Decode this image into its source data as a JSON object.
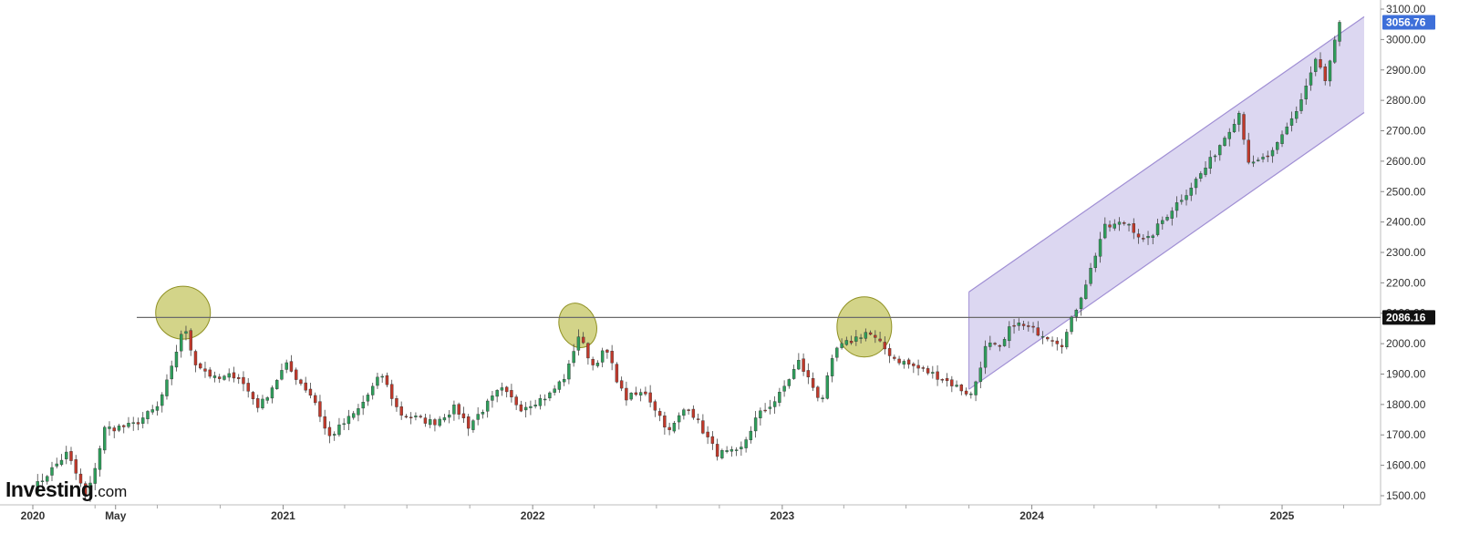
{
  "chart_data": {
    "type": "candlestick",
    "title": "",
    "xlabel": "",
    "ylabel": "",
    "x_range": [
      "2020-01-01",
      "2025-05-01"
    ],
    "ylim": [
      1470,
      3130
    ],
    "y_ticks": [
      1500,
      1600,
      1700,
      1800,
      1900,
      2000,
      2100,
      2200,
      2300,
      2400,
      2500,
      2600,
      2700,
      2800,
      2900,
      3000,
      3100
    ],
    "y_tick_labels": [
      "1500.00",
      "1600.00",
      "1700.00",
      "1800.00",
      "1900.00",
      "2000.00",
      "2100.00",
      "2200.00",
      "2300.00",
      "2400.00",
      "2500.00",
      "2600.00",
      "2700.00",
      "2800.00",
      "2900.00",
      "3000.00",
      "3100.00"
    ],
    "x_ticks": [
      {
        "date": "2020-01-01",
        "label": "2020"
      },
      {
        "date": "2020-05-01",
        "label": "May"
      },
      {
        "date": "2021-01-01",
        "label": "2021"
      },
      {
        "date": "2022-01-01",
        "label": "2022"
      },
      {
        "date": "2023-01-01",
        "label": "2023"
      },
      {
        "date": "2024-01-01",
        "label": "2024"
      },
      {
        "date": "2025-01-01",
        "label": "2025"
      }
    ],
    "grid": false,
    "up_color": "#2e9e5b",
    "down_color": "#c0392b",
    "last_price": {
      "value": 3056.76,
      "label": "3056.76",
      "color": "#3d6fd9"
    },
    "resistance": {
      "value": 2086.16,
      "label": "2086.16",
      "color": "#6b6b6b",
      "start": "2020-06-01"
    },
    "channel": {
      "start": "2023-10-01",
      "end": "2025-05-01",
      "upper": [
        2170,
        3075
      ],
      "lower": [
        1850,
        2760
      ],
      "fill": "#d6d0ee",
      "edge": "#a08fd4"
    },
    "highlights": [
      {
        "date": "2020-08-01",
        "value": 2090,
        "color": "#b5b73a"
      },
      {
        "date": "2022-03-08",
        "value": 2060,
        "color": "#b5b73a"
      },
      {
        "date": "2023-05-01",
        "value": 2055,
        "color": "#b5b73a"
      }
    ],
    "path": [
      [
        "2020-01-01",
        1520
      ],
      [
        "2020-02-20",
        1640
      ],
      [
        "2020-03-20",
        1490
      ],
      [
        "2020-04-15",
        1720
      ],
      [
        "2020-05-25",
        1730
      ],
      [
        "2020-07-01",
        1790
      ],
      [
        "2020-07-20",
        1900
      ],
      [
        "2020-08-08",
        2060
      ],
      [
        "2020-08-25",
        1940
      ],
      [
        "2020-09-25",
        1880
      ],
      [
        "2020-10-25",
        1900
      ],
      [
        "2020-11-27",
        1790
      ],
      [
        "2021-01-05",
        1930
      ],
      [
        "2021-02-15",
        1820
      ],
      [
        "2021-03-08",
        1690
      ],
      [
        "2021-04-20",
        1780
      ],
      [
        "2021-05-25",
        1900
      ],
      [
        "2021-06-20",
        1770
      ],
      [
        "2021-08-09",
        1740
      ],
      [
        "2021-09-10",
        1790
      ],
      [
        "2021-09-29",
        1730
      ],
      [
        "2021-11-15",
        1850
      ],
      [
        "2021-12-15",
        1790
      ],
      [
        "2022-01-25",
        1830
      ],
      [
        "2022-02-20",
        1900
      ],
      [
        "2022-03-08",
        2030
      ],
      [
        "2022-03-30",
        1930
      ],
      [
        "2022-04-18",
        1980
      ],
      [
        "2022-05-15",
        1820
      ],
      [
        "2022-06-15",
        1840
      ],
      [
        "2022-07-20",
        1710
      ],
      [
        "2022-08-15",
        1800
      ],
      [
        "2022-09-27",
        1640
      ],
      [
        "2022-10-30",
        1640
      ],
      [
        "2022-11-25",
        1760
      ],
      [
        "2022-12-25",
        1820
      ],
      [
        "2023-01-25",
        1940
      ],
      [
        "2023-02-27",
        1810
      ],
      [
        "2023-03-20",
        1980
      ],
      [
        "2023-05-05",
        2040
      ],
      [
        "2023-06-15",
        1950
      ],
      [
        "2023-08-20",
        1890
      ],
      [
        "2023-10-05",
        1830
      ],
      [
        "2023-10-27",
        2000
      ],
      [
        "2023-11-16",
        1980
      ],
      [
        "2023-12-04",
        2070
      ],
      [
        "2024-01-20",
        2030
      ],
      [
        "2024-02-15",
        2000
      ],
      [
        "2024-03-25",
        2230
      ],
      [
        "2024-04-15",
        2380
      ],
      [
        "2024-05-20",
        2400
      ],
      [
        "2024-06-15",
        2330
      ],
      [
        "2024-07-15",
        2420
      ],
      [
        "2024-08-15",
        2500
      ],
      [
        "2024-09-15",
        2590
      ],
      [
        "2024-10-30",
        2760
      ],
      [
        "2024-11-15",
        2580
      ],
      [
        "2024-12-20",
        2630
      ],
      [
        "2025-01-25",
        2780
      ],
      [
        "2025-02-20",
        2940
      ],
      [
        "2025-03-05",
        2860
      ],
      [
        "2025-03-25",
        3050
      ],
      [
        "2025-04-01",
        3056.76
      ]
    ]
  },
  "branding": {
    "logo_name": "Investing",
    "logo_suffix": ".com"
  }
}
